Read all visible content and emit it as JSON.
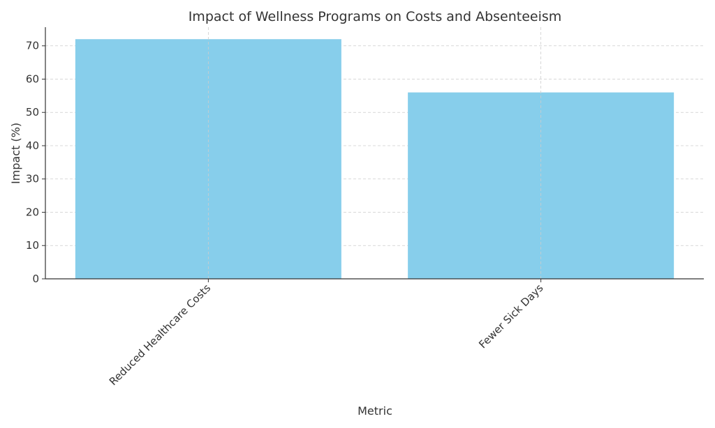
{
  "chart_data": {
    "type": "bar",
    "title": "Impact of Wellness Programs on Costs and Absenteeism",
    "xlabel": "Metric",
    "ylabel": "Impact (%)",
    "categories": [
      "Reduced Healthcare Costs",
      "Fewer Sick Days"
    ],
    "values": [
      72,
      56
    ],
    "ylim": [
      0,
      75.6
    ],
    "yticks": [
      0,
      10,
      20,
      30,
      40,
      50,
      60,
      70
    ],
    "bar_color": "#87ceeb",
    "grid": true,
    "legend": "none"
  }
}
